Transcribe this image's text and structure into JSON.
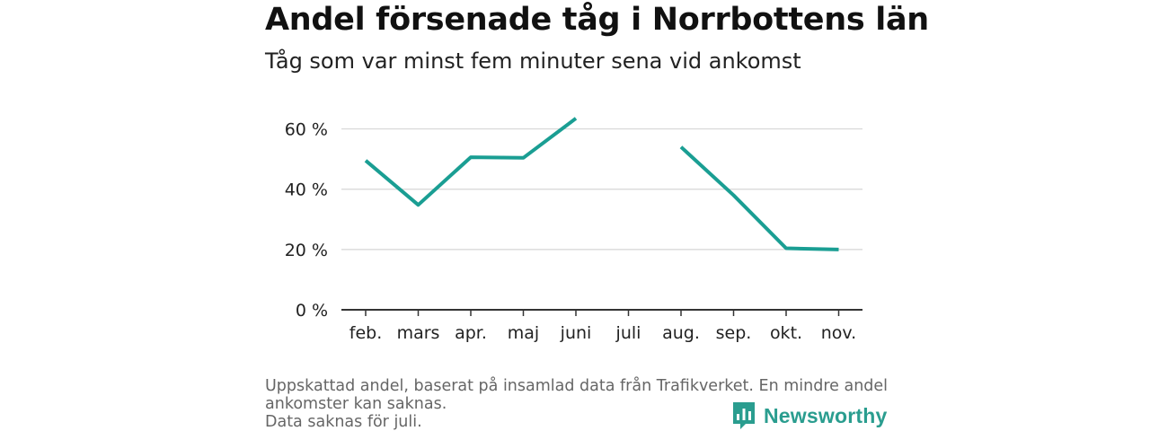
{
  "title": "Andel försenade tåg i Norrbottens län",
  "subtitle": "Tåg som var minst fem minuter sena vid ankomst",
  "chart_data": {
    "type": "line",
    "categories": [
      "feb.",
      "mars",
      "apr.",
      "maj",
      "juni",
      "juli",
      "aug.",
      "sep.",
      "okt.",
      "nov."
    ],
    "series": [
      {
        "values": [
          49.5,
          34.8,
          50.6,
          50.4,
          63.5,
          null,
          54.0,
          38.0,
          20.4,
          20.0
        ]
      }
    ],
    "ylim": [
      0,
      70
    ],
    "yticks": [
      0,
      20,
      40,
      60
    ],
    "ytick_labels": [
      "0 %",
      "20 %",
      "40 %",
      "60 %"
    ],
    "xlabel": "",
    "ylabel": "",
    "grid": true,
    "line_color": "#1a9e93"
  },
  "footnote": {
    "line1": "Uppskattad andel, baserat på insamlad data från Trafikverket. En mindre andel",
    "line2": "ankomster kan saknas.",
    "line3": "Data saknas för juli."
  },
  "logo": {
    "text": "Newsworthy",
    "icon": "bar-chart-speech-bubble-icon",
    "color": "#2a9d8f"
  }
}
